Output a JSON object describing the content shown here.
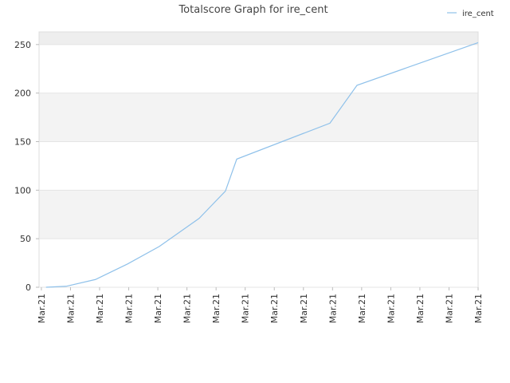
{
  "chart_data": {
    "type": "line",
    "title": "Totalscore Graph for ire_cent",
    "x": [
      0.16,
      0.85,
      1.86,
      2.96,
      4.05,
      5.42,
      6.32,
      6.71,
      9.91,
      10.84,
      15
    ],
    "series": [
      {
        "name": "ire_cent",
        "color": "#8fc1ea",
        "values": [
          0,
          1,
          8,
          24,
          42,
          71,
          99,
          132,
          169,
          208,
          252
        ]
      }
    ],
    "xlim": [
      -0.08,
      15
    ],
    "xticks": [
      {
        "value": 0,
        "label": "Mar.21"
      },
      {
        "value": 1,
        "label": "Mar.21"
      },
      {
        "value": 2,
        "label": "Mar.21"
      },
      {
        "value": 3,
        "label": "Mar.21"
      },
      {
        "value": 4,
        "label": "Mar.21"
      },
      {
        "value": 5,
        "label": "Mar.21"
      },
      {
        "value": 6,
        "label": "Mar.21"
      },
      {
        "value": 7,
        "label": "Mar.21"
      },
      {
        "value": 8,
        "label": "Mar.21"
      },
      {
        "value": 9,
        "label": "Mar.21"
      },
      {
        "value": 10,
        "label": "Mar.21"
      },
      {
        "value": 11,
        "label": "Mar.21"
      },
      {
        "value": 12,
        "label": "Mar.21"
      },
      {
        "value": 13,
        "label": "Mar.21"
      },
      {
        "value": 14,
        "label": "Mar.21"
      },
      {
        "value": 15,
        "label": "Mar.21"
      }
    ],
    "ylim": [
      0,
      263
    ],
    "yticks": [
      0,
      50,
      100,
      150,
      200,
      250
    ],
    "grid": true,
    "legend": "top-right"
  }
}
